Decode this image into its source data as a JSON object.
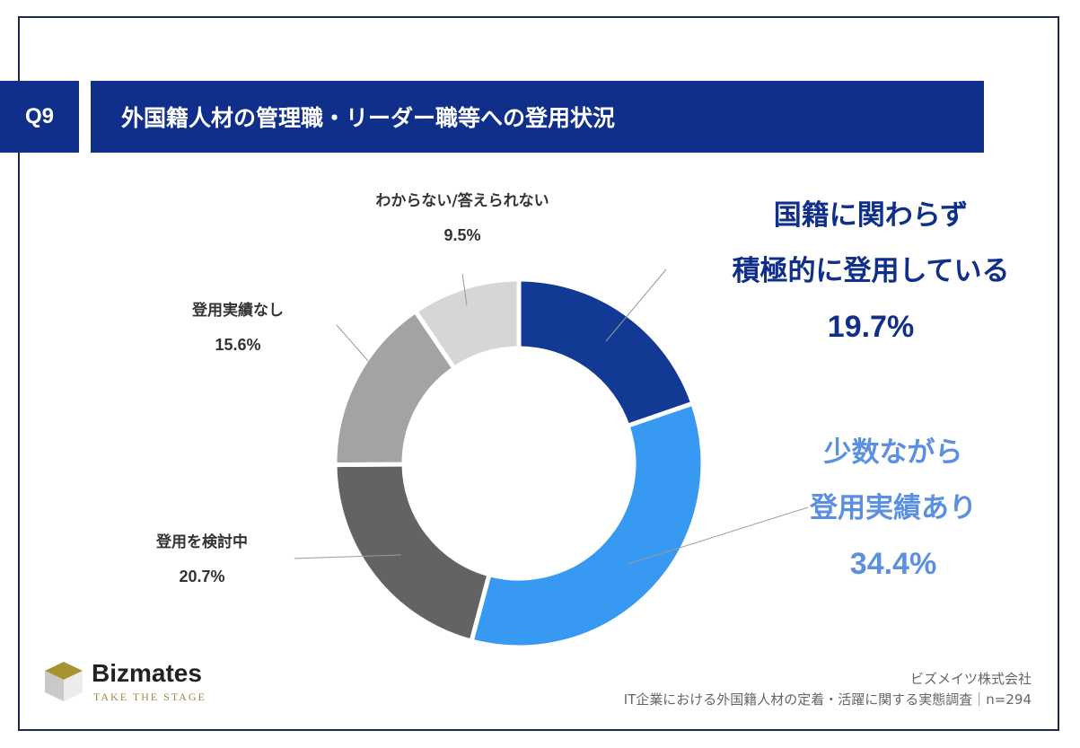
{
  "header": {
    "badge": "Q9",
    "title": "外国籍人材の管理職・リーダー職等への登用状況"
  },
  "chart_data": {
    "type": "pie",
    "donut": true,
    "title": "外国籍人材の管理職・リーダー職等への登用状況",
    "slices": [
      {
        "label": "国籍に関わらず積極的に登用している",
        "value": 19.7,
        "color": "#123a94"
      },
      {
        "label": "少数ながら登用実績あり",
        "value": 34.4,
        "color": "#3799f2"
      },
      {
        "label": "登用を検討中",
        "value": 20.7,
        "color": "#636363"
      },
      {
        "label": "登用実績なし",
        "value": 15.6,
        "color": "#a3a3a3"
      },
      {
        "label": "わからない/答えられない",
        "value": 9.5,
        "color": "#d6d6d6"
      }
    ]
  },
  "labels": {
    "s0_line1": "国籍に関わらず",
    "s0_line2": "積極的に登用している",
    "s0_pct": "19.7%",
    "s1_line1": "少数ながら",
    "s1_line2": "登用実績あり",
    "s1_pct": "34.4%",
    "s2_name": "登用を検討中",
    "s2_pct": "20.7%",
    "s3_name": "登用実績なし",
    "s3_pct": "15.6%",
    "s4_name": "わからない/答えられない",
    "s4_pct": "9.5%"
  },
  "colors": {
    "primary_dark": "#0f2f8a",
    "primary_light": "#3799f2",
    "accent_text_light": "#5b8fe0"
  },
  "logo": {
    "name": "Bizmates",
    "tagline": "TAKE THE STAGE"
  },
  "footer": {
    "company": "ビズメイツ株式会社",
    "survey": "IT企業における外国籍人材の定着・活躍に関する実態調査｜n=294"
  }
}
